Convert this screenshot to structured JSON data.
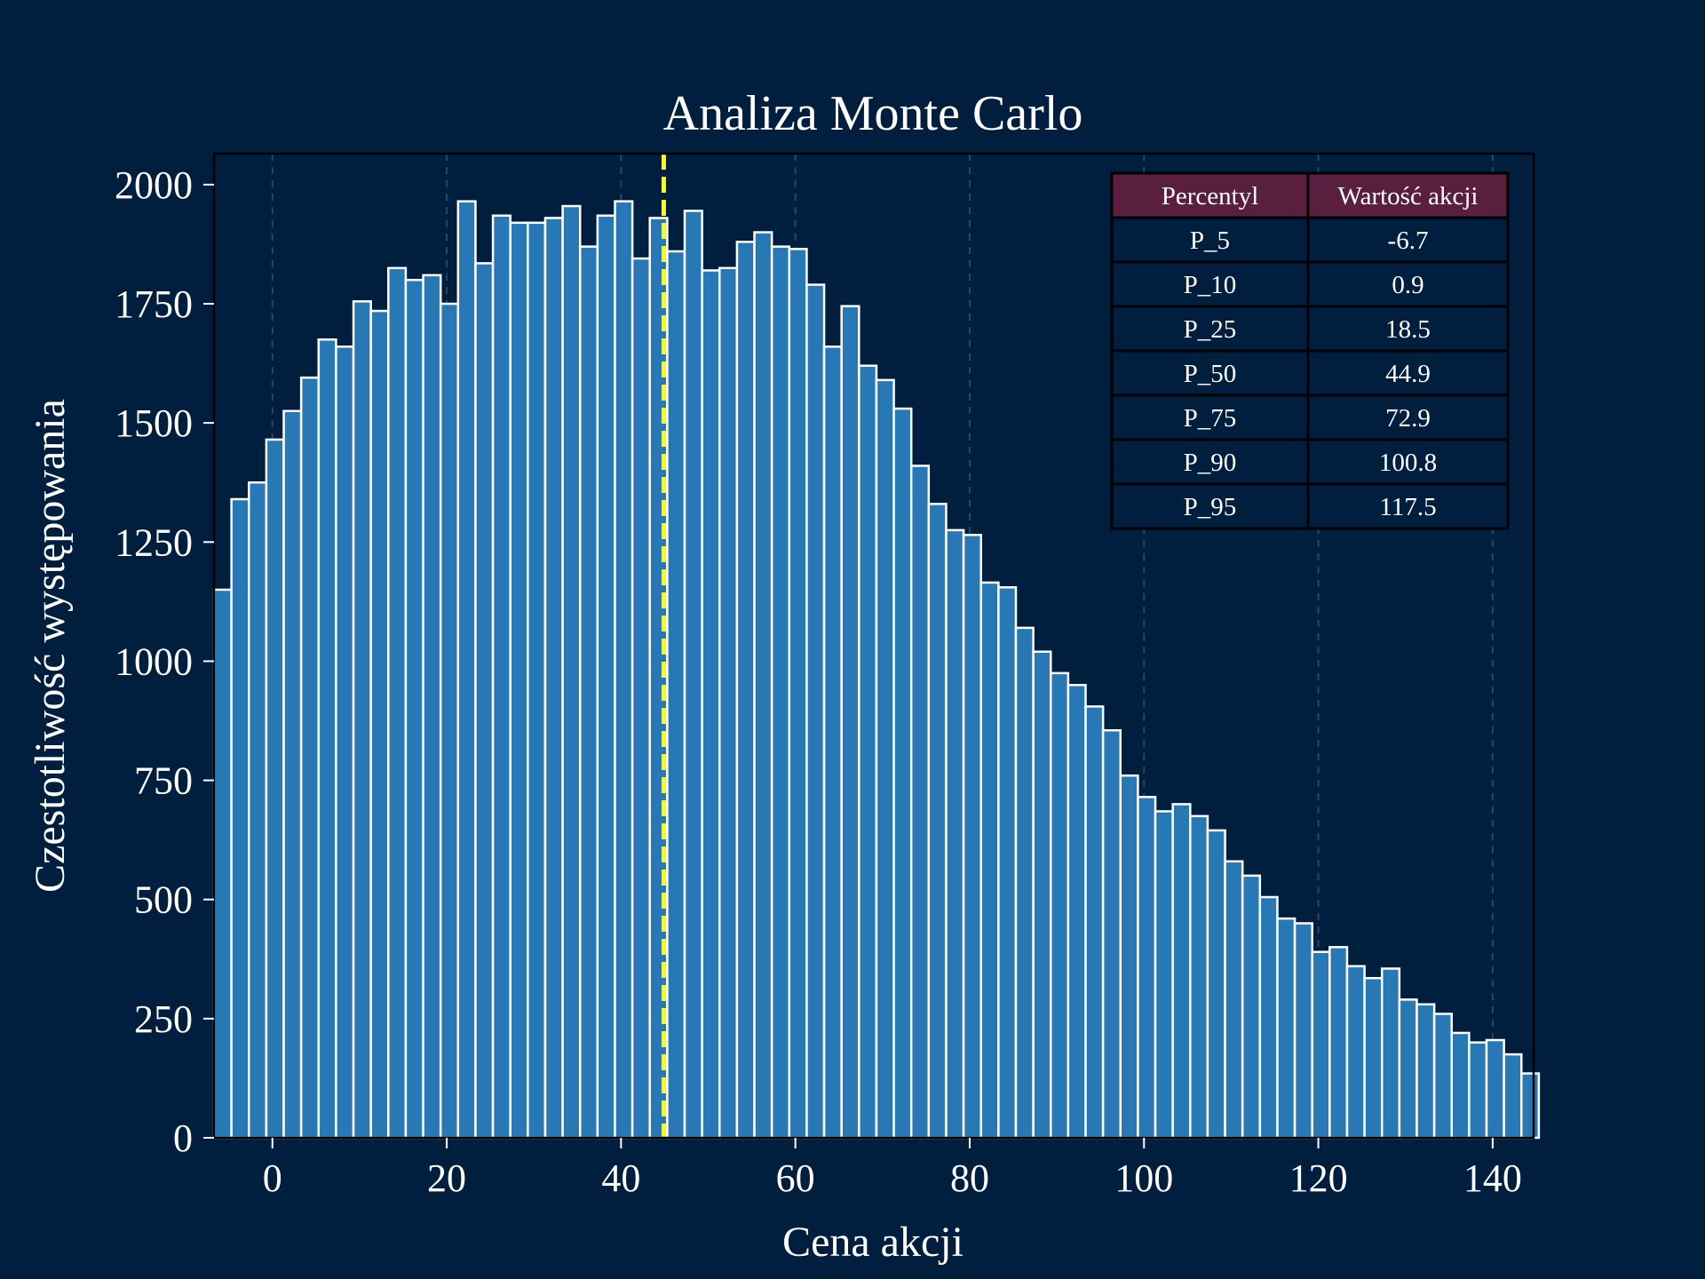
{
  "chart_data": {
    "type": "bar",
    "title": "Analiza Monte Carlo",
    "xlabel": "Cena akcji",
    "ylabel": "Czestotliwość występowania",
    "xlim": [
      -6.7,
      144.7
    ],
    "ylim": [
      0,
      2065
    ],
    "x_ticks": [
      0,
      20,
      40,
      60,
      80,
      100,
      120,
      140
    ],
    "y_ticks": [
      0,
      250,
      500,
      750,
      1000,
      1250,
      1500,
      1750,
      2000
    ],
    "grid": "vertical-dashed",
    "bin_start": -6.7,
    "bin_width": 2.0,
    "values": [
      1150,
      1340,
      1375,
      1465,
      1525,
      1595,
      1675,
      1660,
      1755,
      1735,
      1825,
      1800,
      1810,
      1750,
      1965,
      1835,
      1935,
      1920,
      1920,
      1930,
      1955,
      1870,
      1935,
      1965,
      1845,
      1930,
      1860,
      1945,
      1820,
      1825,
      1880,
      1900,
      1870,
      1865,
      1790,
      1660,
      1745,
      1620,
      1590,
      1530,
      1410,
      1330,
      1275,
      1265,
      1165,
      1155,
      1070,
      1020,
      975,
      950,
      905,
      855,
      760,
      715,
      685,
      700,
      675,
      645,
      580,
      550,
      505,
      460,
      450,
      390,
      400,
      360,
      335,
      355,
      290,
      280,
      260,
      220,
      200,
      205,
      175,
      135
    ],
    "median_line": {
      "x": 44.9,
      "color": "#ffff00"
    },
    "bar_color": "#2878b5",
    "bar_edge_color": "#ffffff",
    "background_color": "#001f3f",
    "percentile_table": {
      "position": "top-right",
      "header_color": "#5a1f3f",
      "columns": [
        "Percentyl",
        "Wartość akcji"
      ],
      "rows": [
        [
          "P_5",
          "-6.7"
        ],
        [
          "P_10",
          "0.9"
        ],
        [
          "P_25",
          "18.5"
        ],
        [
          "P_50",
          "44.9"
        ],
        [
          "P_75",
          "72.9"
        ],
        [
          "P_90",
          "100.8"
        ],
        [
          "P_95",
          "117.5"
        ]
      ]
    }
  }
}
